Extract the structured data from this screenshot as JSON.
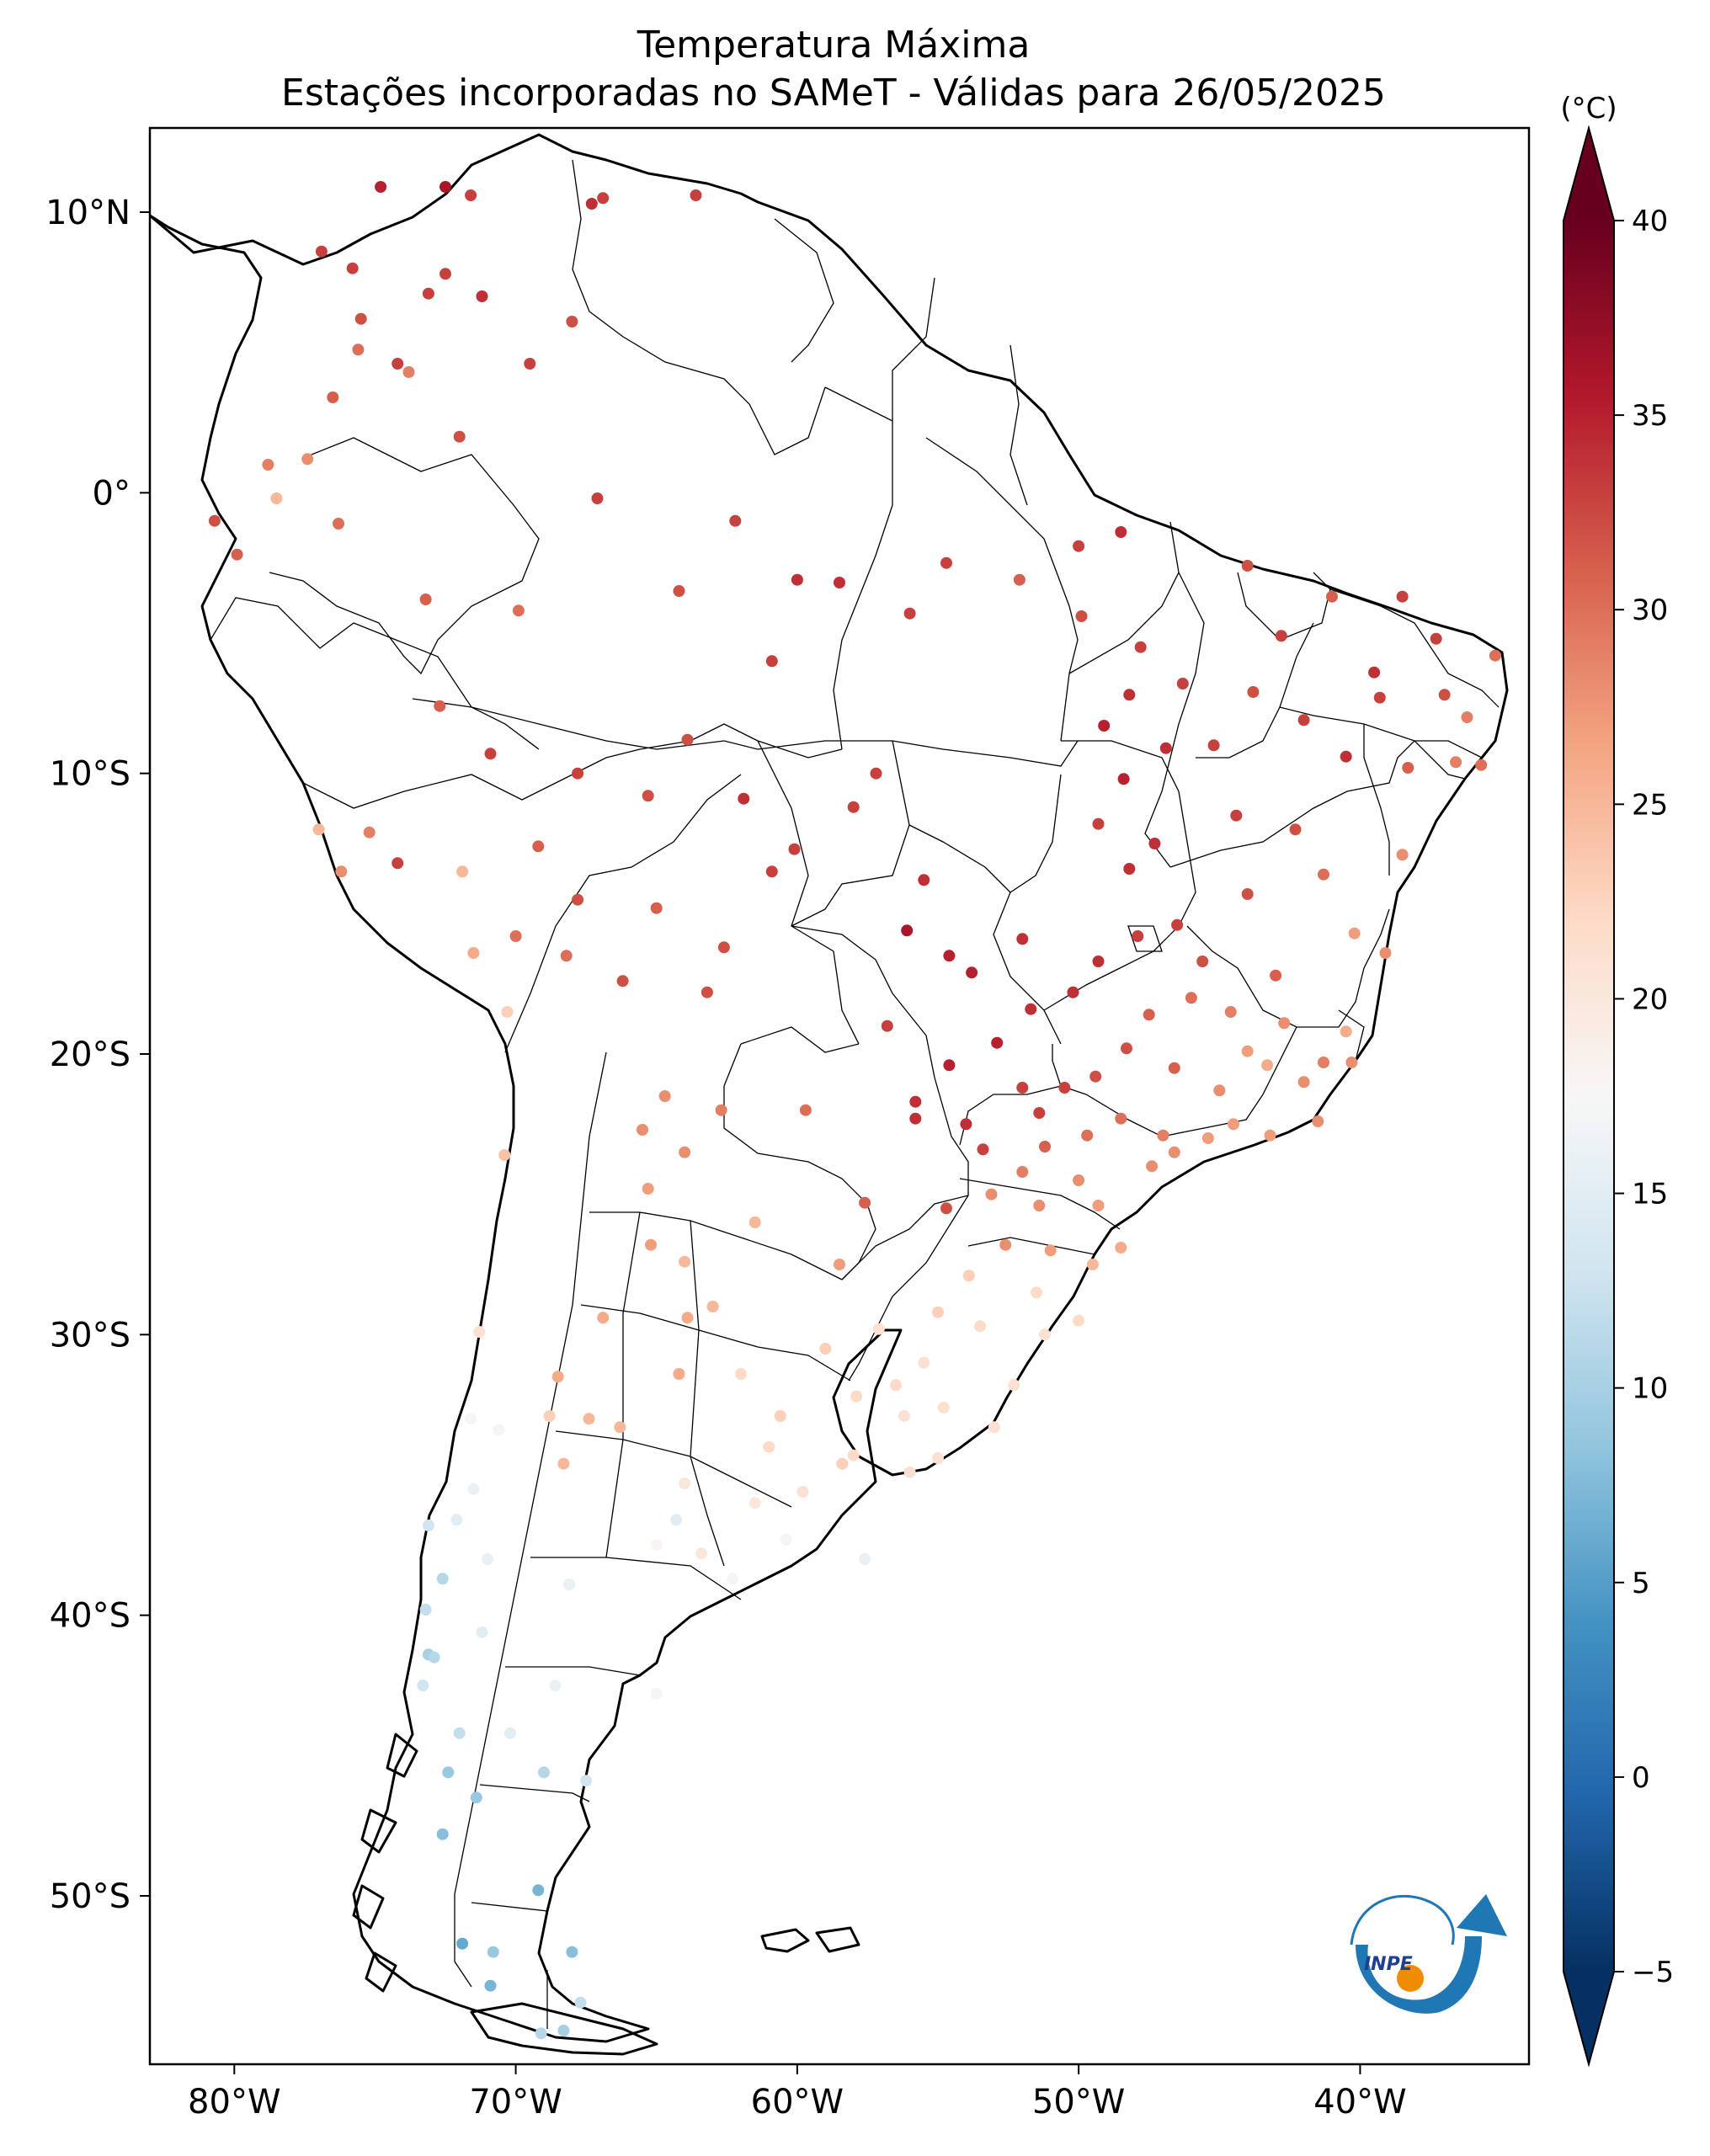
{
  "title": {
    "line1": "Temperatura Máxima",
    "line2": "Estações incorporadas no SAMeT - Válidas para 26/05/2025"
  },
  "colorbar": {
    "unit": "(°C)",
    "vmin": -5,
    "vmax": 40,
    "ticks": [
      "40",
      "35",
      "30",
      "25",
      "20",
      "15",
      "10",
      "5",
      "0",
      "−5"
    ],
    "colormap": "RdBu_r",
    "colors": [
      "#053061",
      "#2166ac",
      "#4393c3",
      "#92c5de",
      "#d1e5f0",
      "#f7f7f7",
      "#fddbc7",
      "#f4a582",
      "#d6604d",
      "#b2182b",
      "#67001f"
    ]
  },
  "logo": {
    "text": "INPE",
    "colors": {
      "blue": "#1f77b4",
      "orange": "#f08c00"
    }
  },
  "chart_data": {
    "type": "scatter",
    "title": "Temperatura Máxima",
    "subtitle": "Estações incorporadas no SAMeT - Válidas para 26/05/2025",
    "xlim": [
      -83,
      -34
    ],
    "ylim": [
      -56,
      13
    ],
    "xticks": [
      {
        "value": -80,
        "label": "80°W"
      },
      {
        "value": -70,
        "label": "70°W"
      },
      {
        "value": -60,
        "label": "60°W"
      },
      {
        "value": -50,
        "label": "50°W"
      },
      {
        "value": -40,
        "label": "40°W"
      }
    ],
    "yticks": [
      {
        "value": 10,
        "label": "10°N"
      },
      {
        "value": 0,
        "label": "0°"
      },
      {
        "value": -10,
        "label": "10°S"
      },
      {
        "value": -20,
        "label": "20°S"
      },
      {
        "value": -30,
        "label": "30°S"
      },
      {
        "value": -40,
        "label": "40°S"
      },
      {
        "value": -50,
        "label": "50°S"
      }
    ],
    "points": [
      [
        -74.2,
        4.6,
        33
      ],
      [
        -75.5,
        6.2,
        32
      ],
      [
        -73.1,
        7.1,
        33
      ],
      [
        -76.5,
        3.4,
        31
      ],
      [
        -75.6,
        5.1,
        30
      ],
      [
        -73.8,
        4.3,
        29
      ],
      [
        -72.5,
        7.8,
        33
      ],
      [
        -74.8,
        10.9,
        35
      ],
      [
        -72.5,
        10.9,
        36
      ],
      [
        -71.6,
        10.6,
        33
      ],
      [
        -67.3,
        10.3,
        34
      ],
      [
        -66.9,
        10.5,
        33
      ],
      [
        -71.2,
        7.0,
        34
      ],
      [
        -69.5,
        4.6,
        33
      ],
      [
        -72.0,
        2.0,
        32
      ],
      [
        -68.0,
        6.1,
        32
      ],
      [
        -63.6,
        10.6,
        33
      ],
      [
        -75.8,
        8.0,
        33
      ],
      [
        -76.9,
        8.6,
        33
      ],
      [
        -78.5,
        -0.2,
        25
      ],
      [
        -79.9,
        -2.2,
        31
      ],
      [
        -77.4,
        1.2,
        28
      ],
      [
        -80.7,
        -1.0,
        32
      ],
      [
        -76.3,
        -1.1,
        30
      ],
      [
        -78.8,
        1.0,
        29
      ],
      [
        -73.2,
        -3.8,
        31
      ],
      [
        -69.9,
        -4.2,
        30
      ],
      [
        -67.1,
        -0.2,
        33
      ],
      [
        -64.2,
        -3.5,
        32
      ],
      [
        -62.2,
        -1.0,
        33
      ],
      [
        -60.0,
        -3.1,
        34
      ],
      [
        -58.5,
        -3.2,
        34
      ],
      [
        -60.9,
        -6.0,
        33
      ],
      [
        -56.0,
        -4.3,
        33
      ],
      [
        -54.7,
        -2.5,
        33
      ],
      [
        -52.1,
        -3.1,
        31
      ],
      [
        -49.9,
        -4.4,
        32
      ],
      [
        -48.5,
        -1.4,
        34
      ],
      [
        -47.8,
        -5.5,
        33
      ],
      [
        -50.0,
        -1.9,
        33
      ],
      [
        -44.0,
        -2.6,
        32
      ],
      [
        -42.8,
        -5.1,
        33
      ],
      [
        -41.0,
        -3.7,
        31
      ],
      [
        -38.5,
        -3.7,
        33
      ],
      [
        -37.3,
        -5.2,
        33
      ],
      [
        -35.2,
        -5.8,
        30
      ],
      [
        -36.6,
        -9.6,
        29
      ],
      [
        -35.7,
        -9.7,
        30
      ],
      [
        -38.5,
        -12.9,
        28
      ],
      [
        -39.5,
        -6.4,
        34
      ],
      [
        -40.5,
        -9.4,
        34
      ],
      [
        -42.0,
        -8.1,
        33
      ],
      [
        -43.8,
        -7.1,
        32
      ],
      [
        -45.2,
        -9.0,
        33
      ],
      [
        -46.3,
        -6.8,
        33
      ],
      [
        -44.4,
        -11.5,
        33
      ],
      [
        -42.3,
        -12.0,
        32
      ],
      [
        -41.3,
        -13.6,
        30
      ],
      [
        -40.2,
        -15.7,
        27
      ],
      [
        -39.1,
        -16.4,
        28
      ],
      [
        -38.3,
        -9.8,
        31
      ],
      [
        -37.0,
        -7.2,
        32
      ],
      [
        -36.2,
        -8.0,
        29
      ],
      [
        -39.3,
        -7.3,
        33
      ],
      [
        -48.4,
        -10.2,
        35
      ],
      [
        -47.3,
        -12.5,
        34
      ],
      [
        -49.1,
        -8.3,
        35
      ],
      [
        -48.2,
        -7.2,
        34
      ],
      [
        -46.9,
        -9.1,
        34
      ],
      [
        -49.3,
        -11.8,
        33
      ],
      [
        -48.2,
        -13.4,
        34
      ],
      [
        -47.9,
        -15.8,
        33
      ],
      [
        -46.5,
        -15.4,
        33
      ],
      [
        -44.0,
        -14.3,
        32
      ],
      [
        -45.6,
        -16.7,
        32
      ],
      [
        -43.0,
        -17.2,
        31
      ],
      [
        -56.1,
        -15.6,
        36
      ],
      [
        -54.6,
        -16.5,
        35
      ],
      [
        -55.5,
        -13.8,
        34
      ],
      [
        -58.0,
        -11.2,
        33
      ],
      [
        -57.2,
        -10.0,
        33
      ],
      [
        -53.8,
        -17.1,
        35
      ],
      [
        -52.0,
        -15.9,
        34
      ],
      [
        -49.3,
        -16.7,
        34
      ],
      [
        -50.2,
        -17.8,
        34
      ],
      [
        -51.7,
        -18.4,
        34
      ],
      [
        -52.9,
        -19.6,
        35
      ],
      [
        -54.6,
        -20.4,
        35
      ],
      [
        -55.8,
        -21.7,
        34
      ],
      [
        -54.0,
        -22.5,
        34
      ],
      [
        -56.8,
        -19.0,
        33
      ],
      [
        -52.0,
        -21.2,
        33
      ],
      [
        -53.4,
        -23.4,
        33
      ],
      [
        -54.7,
        -25.5,
        32
      ],
      [
        -55.8,
        -22.3,
        34
      ],
      [
        -51.4,
        -22.1,
        33
      ],
      [
        -50.5,
        -21.2,
        33
      ],
      [
        -49.4,
        -20.8,
        32
      ],
      [
        -48.3,
        -19.8,
        32
      ],
      [
        -47.5,
        -18.6,
        31
      ],
      [
        -46.6,
        -20.5,
        31
      ],
      [
        -46.6,
        -23.5,
        28
      ],
      [
        -47.0,
        -22.9,
        29
      ],
      [
        -48.5,
        -22.3,
        30
      ],
      [
        -49.7,
        -22.9,
        30
      ],
      [
        -51.2,
        -23.3,
        31
      ],
      [
        -50.0,
        -24.5,
        28
      ],
      [
        -52.0,
        -24.2,
        29
      ],
      [
        -53.1,
        -25.0,
        28
      ],
      [
        -51.4,
        -25.4,
        28
      ],
      [
        -49.3,
        -25.4,
        27
      ],
      [
        -48.5,
        -26.9,
        26
      ],
      [
        -49.5,
        -27.5,
        25
      ],
      [
        -51.0,
        -27.0,
        27
      ],
      [
        -52.6,
        -26.8,
        28
      ],
      [
        -44.0,
        -19.9,
        27
      ],
      [
        -43.2,
        -22.9,
        27
      ],
      [
        -42.0,
        -21.0,
        28
      ],
      [
        -41.3,
        -20.3,
        29
      ],
      [
        -40.3,
        -20.3,
        28
      ],
      [
        -42.7,
        -18.9,
        28
      ],
      [
        -45.0,
        -21.3,
        28
      ],
      [
        -44.5,
        -22.5,
        27
      ],
      [
        -43.3,
        -20.4,
        26
      ],
      [
        -44.6,
        -18.5,
        29
      ],
      [
        -46.0,
        -18.0,
        30
      ],
      [
        -41.5,
        -22.4,
        28
      ],
      [
        -40.5,
        -19.2,
        26
      ],
      [
        -45.4,
        -23.0,
        27
      ],
      [
        -47.4,
        -24.0,
        28
      ],
      [
        -51.2,
        -30.0,
        21
      ],
      [
        -52.3,
        -31.8,
        21
      ],
      [
        -53.5,
        -29.7,
        22
      ],
      [
        -55.0,
        -29.2,
        23
      ],
      [
        -57.1,
        -29.8,
        21
      ],
      [
        -56.5,
        -31.8,
        22
      ],
      [
        -54.8,
        -32.6,
        21
      ],
      [
        -53.0,
        -33.3,
        21
      ],
      [
        -50.0,
        -29.5,
        22
      ],
      [
        -51.5,
        -28.5,
        22
      ],
      [
        -53.9,
        -27.9,
        23
      ],
      [
        -55.5,
        -31.0,
        21
      ],
      [
        -56.0,
        -34.9,
        21
      ],
      [
        -55.0,
        -34.4,
        21
      ],
      [
        -57.9,
        -32.2,
        22
      ],
      [
        -58.0,
        -34.3,
        22
      ],
      [
        -56.2,
        -32.9,
        21
      ],
      [
        -58.4,
        -34.6,
        23
      ],
      [
        -60.6,
        -32.9,
        23
      ],
      [
        -61.0,
        -34.0,
        22
      ],
      [
        -59.0,
        -30.5,
        23
      ],
      [
        -62.0,
        -31.4,
        22
      ],
      [
        -64.2,
        -31.4,
        26
      ],
      [
        -65.3,
        -24.8,
        27
      ],
      [
        -64.0,
        -27.4,
        25
      ],
      [
        -65.2,
        -26.8,
        27
      ],
      [
        -63.9,
        -29.4,
        26
      ],
      [
        -66.9,
        -29.4,
        26
      ],
      [
        -68.8,
        -32.9,
        23
      ],
      [
        -68.5,
        -31.5,
        26
      ],
      [
        -67.4,
        -33.0,
        25
      ],
      [
        -66.3,
        -33.3,
        25
      ],
      [
        -60.4,
        -37.3,
        17
      ],
      [
        -62.3,
        -38.7,
        17
      ],
      [
        -65.0,
        -37.5,
        18
      ],
      [
        -57.6,
        -38.0,
        16
      ],
      [
        -59.8,
        -35.6,
        21
      ],
      [
        -61.5,
        -36.0,
        20
      ],
      [
        -63.4,
        -37.8,
        20
      ],
      [
        -68.1,
        -38.9,
        16
      ],
      [
        -68.3,
        -34.6,
        25
      ],
      [
        -64.3,
        -36.6,
        15
      ],
      [
        -64.0,
        -35.3,
        20
      ],
      [
        -63.0,
        -29.0,
        25
      ],
      [
        -61.5,
        -26.0,
        25
      ],
      [
        -58.5,
        -27.5,
        27
      ],
      [
        -57.6,
        -25.3,
        31
      ],
      [
        -59.7,
        -22.0,
        30
      ],
      [
        -62.7,
        -22.0,
        29
      ],
      [
        -64.0,
        -23.5,
        28
      ],
      [
        -65.5,
        -22.7,
        28
      ],
      [
        -70.4,
        -23.6,
        24
      ],
      [
        -70.3,
        -18.5,
        23
      ],
      [
        -71.3,
        -29.9,
        21
      ],
      [
        -70.6,
        -33.4,
        18
      ],
      [
        -71.6,
        -33.0,
        17
      ],
      [
        -72.1,
        -36.6,
        15
      ],
      [
        -73.1,
        -36.8,
        13
      ],
      [
        -72.6,
        -38.7,
        11
      ],
      [
        -73.2,
        -39.8,
        12
      ],
      [
        -73.1,
        -41.4,
        10
      ],
      [
        -72.9,
        -41.5,
        11
      ],
      [
        -73.3,
        -42.5,
        13
      ],
      [
        -72.4,
        -45.6,
        9
      ],
      [
        -72.0,
        -44.2,
        12
      ],
      [
        -72.6,
        -47.8,
        8
      ],
      [
        -71.9,
        -51.7,
        6
      ],
      [
        -70.9,
        -53.2,
        7
      ],
      [
        -70.8,
        -52.0,
        9
      ],
      [
        -71.4,
        -46.5,
        9
      ],
      [
        -69.0,
        -45.6,
        11
      ],
      [
        -67.5,
        -45.9,
        13
      ],
      [
        -69.2,
        -49.8,
        7
      ],
      [
        -68.0,
        -52.0,
        8
      ],
      [
        -67.7,
        -53.8,
        12
      ],
      [
        -68.3,
        -54.8,
        10
      ],
      [
        -69.1,
        -54.9,
        11
      ],
      [
        -70.2,
        -44.2,
        15
      ],
      [
        -71.2,
        -40.6,
        15
      ],
      [
        -68.6,
        -42.5,
        16
      ],
      [
        -65.0,
        -42.8,
        17
      ],
      [
        -71.0,
        -38.0,
        16
      ],
      [
        -71.5,
        -35.5,
        16
      ],
      [
        -77.0,
        -12.0,
        25
      ],
      [
        -76.2,
        -13.5,
        28
      ],
      [
        -74.2,
        -13.2,
        33
      ],
      [
        -71.5,
        -16.4,
        26
      ],
      [
        -70.0,
        -15.8,
        30
      ],
      [
        -71.9,
        -13.5,
        25
      ],
      [
        -75.2,
        -12.1,
        29
      ],
      [
        -69.2,
        -12.6,
        31
      ],
      [
        -67.8,
        -14.5,
        32
      ],
      [
        -65.0,
        -14.8,
        31
      ],
      [
        -63.2,
        -17.8,
        32
      ],
      [
        -68.2,
        -16.5,
        30
      ],
      [
        -66.2,
        -17.4,
        32
      ],
      [
        -64.7,
        -21.5,
        28
      ],
      [
        -62.6,
        -16.2,
        32
      ],
      [
        -60.9,
        -13.5,
        33
      ],
      [
        -63.9,
        -8.8,
        32
      ],
      [
        -61.9,
        -10.9,
        34
      ],
      [
        -60.1,
        -12.7,
        33
      ],
      [
        -70.9,
        -9.3,
        33
      ],
      [
        -72.7,
        -7.6,
        31
      ],
      [
        -67.8,
        -10.0,
        33
      ],
      [
        -65.3,
        -10.8,
        32
      ]
    ]
  }
}
